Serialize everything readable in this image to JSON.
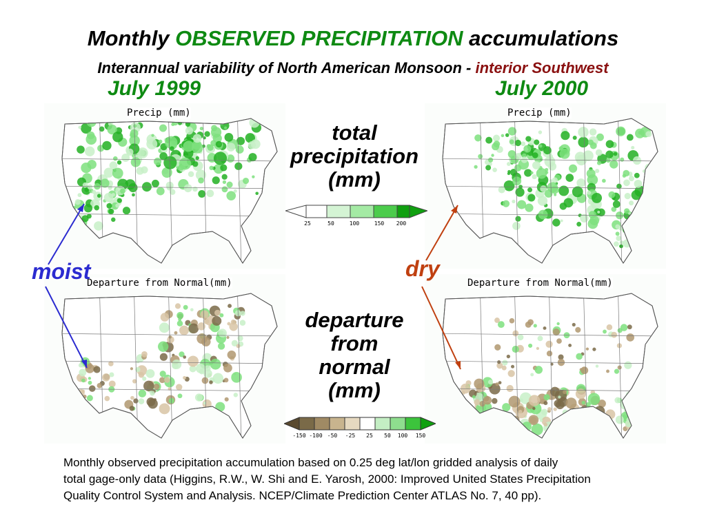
{
  "title": {
    "part1": "Monthly ",
    "part2": "OBSERVED PRECIPITATION",
    "part3": " accumulations"
  },
  "subtitle": {
    "part1": "Interannual variability of North American Monsoon - ",
    "part2": "interior Southwest"
  },
  "years": {
    "left": "July 1999",
    "right": "July 2000"
  },
  "maps": {
    "precip_label": "Precip (mm)",
    "departure_label": "Departure from Normal(mm)"
  },
  "center_labels": {
    "total": [
      "total",
      "precipitation",
      "(mm)"
    ],
    "departure": [
      "departure",
      "from",
      "normal",
      "(mm)"
    ]
  },
  "side_labels": {
    "left": "moist",
    "right": "dry"
  },
  "colorbars": {
    "precip_ticks": [
      "25",
      "50",
      "100",
      "150",
      "200"
    ],
    "departure_ticks": [
      "-150",
      "-100",
      "-50",
      "-25",
      "25",
      "50",
      "100",
      "150"
    ]
  },
  "caption": {
    "line1": "Monthly observed precipitation accumulation based on 0.25 deg lat/lon gridded analysis of daily",
    "line2": "total gage-only data (Higgins, R.W., W. Shi and E. Yarosh, 2000: Improved United States Precipitation",
    "line3": "Quality Control System and Analysis.  NCEP/Climate Prediction Center ATLAS No. 7, 40 pp)."
  },
  "colors": {
    "green_light": "#c8f0c8",
    "green_mid": "#7ee07e",
    "green_dark": "#22b022",
    "brown_light": "#d8c4a4",
    "brown_mid": "#b09870",
    "brown_dark": "#7a6a48"
  }
}
